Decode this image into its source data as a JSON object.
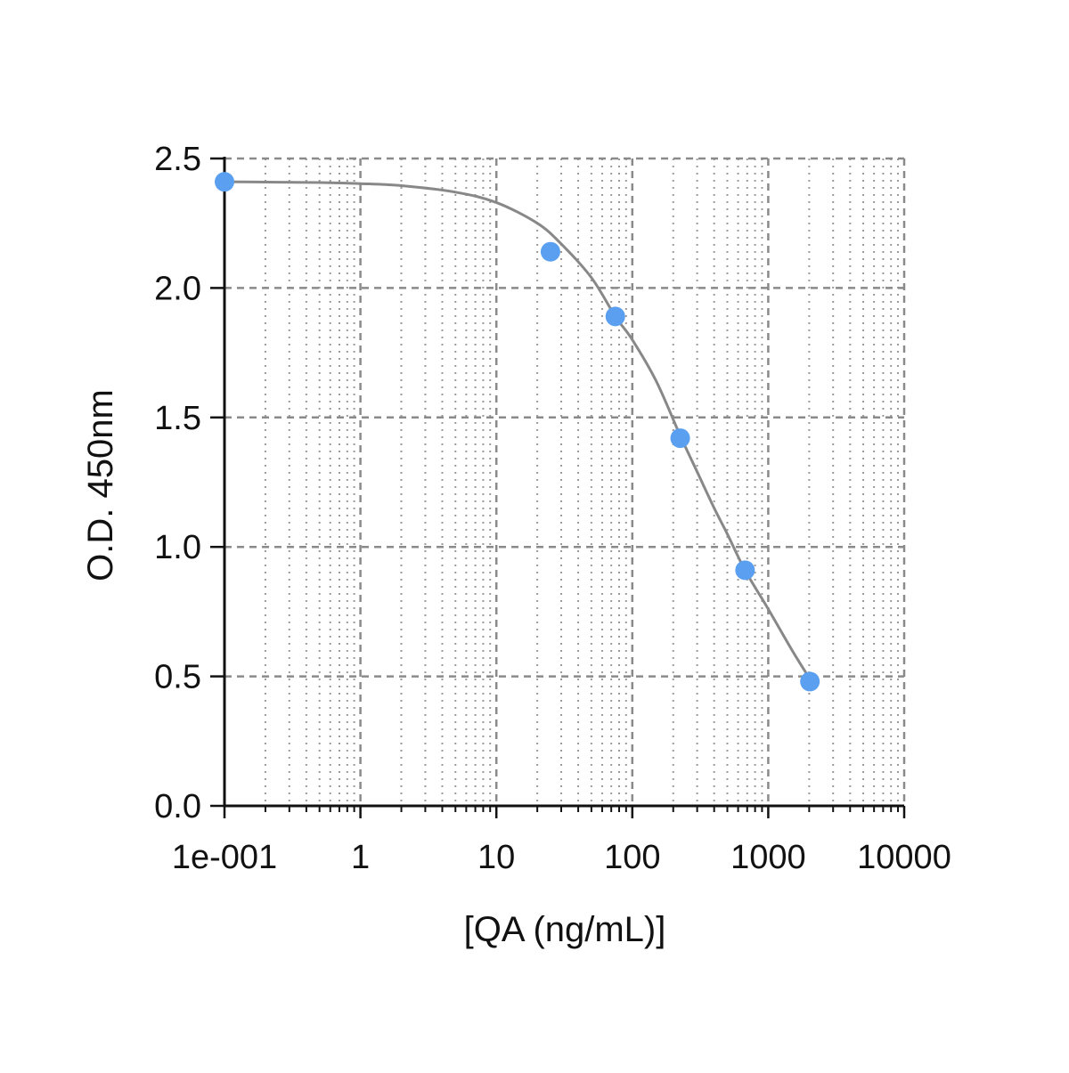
{
  "chart_data": {
    "type": "scatter",
    "xlabel": "[QA (ng/mL)]",
    "ylabel": "O.D. 450nm",
    "x_scale": "log",
    "xlim": [
      0.1,
      10000
    ],
    "ylim": [
      0,
      2.5
    ],
    "x_tick_values": [
      0.1,
      1,
      10,
      100,
      1000,
      10000
    ],
    "x_tick_labels": [
      "1e-001",
      "1",
      "10",
      "100",
      "1000",
      "10000"
    ],
    "y_tick_values": [
      0.0,
      0.5,
      1.0,
      1.5,
      2.0,
      2.5
    ],
    "y_tick_labels": [
      "0.0",
      "0.5",
      "1.0",
      "1.5",
      "2.0",
      "2.5"
    ],
    "grid": true,
    "series": [
      {
        "type": "scatter",
        "x": [
          0.1,
          25,
          75,
          225,
          675,
          2025
        ],
        "y": [
          2.41,
          2.14,
          1.89,
          1.42,
          0.91,
          0.48
        ],
        "marker_color": "#5b9ff0"
      },
      {
        "type": "line",
        "fit": "4PL",
        "x": [
          0.1,
          0.2,
          0.5,
          1,
          2,
          5,
          10,
          20,
          30,
          50,
          75,
          100,
          150,
          225,
          300,
          400,
          500,
          675,
          1000,
          1500,
          2025
        ],
        "y": [
          2.41,
          2.409,
          2.407,
          2.403,
          2.395,
          2.37,
          2.33,
          2.25,
          2.17,
          2.04,
          1.89,
          1.8,
          1.64,
          1.43,
          1.29,
          1.15,
          1.05,
          0.91,
          0.76,
          0.6,
          0.49
        ],
        "line_color": "#888888"
      }
    ]
  }
}
